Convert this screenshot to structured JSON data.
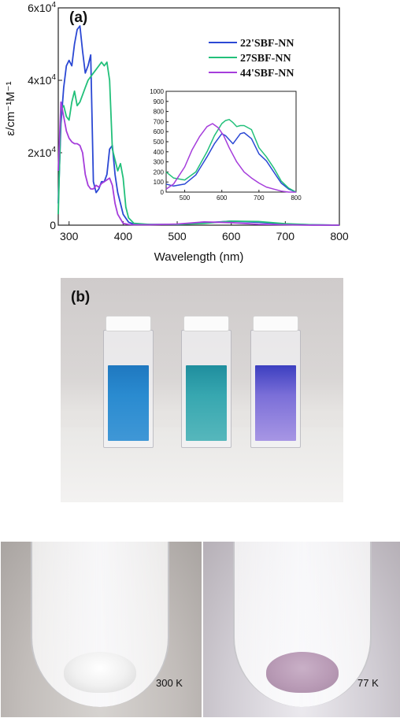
{
  "panel_a_label": "(a)",
  "panel_b_label": "(b)",
  "chart_data": [
    {
      "type": "line",
      "xlabel": "Wavelength (nm)",
      "ylabel": "ε/cm⁻¹M⁻¹",
      "xlim": [
        280,
        800
      ],
      "ylim": [
        0,
        60000
      ],
      "xticks": [
        300,
        400,
        500,
        600,
        700,
        800
      ],
      "yticks": [
        {
          "value": 0,
          "mantissa": "0",
          "exp": ""
        },
        {
          "value": 20000,
          "mantissa": "2x10",
          "exp": "4"
        },
        {
          "value": 40000,
          "mantissa": "4x10",
          "exp": "4"
        },
        {
          "value": 60000,
          "mantissa": "6x10",
          "exp": "4"
        }
      ],
      "legend_position": "top-right",
      "series": [
        {
          "name": "22'SBF-NN",
          "color": "#2b48d4",
          "x": [
            280,
            285,
            290,
            295,
            300,
            305,
            310,
            315,
            320,
            325,
            330,
            335,
            340,
            345,
            350,
            355,
            360,
            365,
            370,
            375,
            380,
            385,
            390,
            395,
            400,
            410,
            420,
            450,
            500,
            550,
            600,
            650,
            700,
            750,
            800
          ],
          "y": [
            6000,
            28000,
            38000,
            44000,
            45500,
            44000,
            50000,
            54000,
            55000,
            48000,
            42000,
            44000,
            47000,
            12000,
            9000,
            10000,
            12000,
            12000,
            14000,
            21000,
            22000,
            14000,
            9000,
            6000,
            3000,
            800,
            300,
            200,
            200,
            600,
            1100,
            800,
            300,
            100,
            0
          ]
        },
        {
          "name": "27SBF-NN",
          "color": "#22c07a",
          "x": [
            280,
            285,
            290,
            295,
            300,
            305,
            310,
            315,
            320,
            325,
            330,
            335,
            340,
            345,
            350,
            355,
            360,
            365,
            370,
            375,
            380,
            385,
            390,
            395,
            400,
            405,
            410,
            420,
            450,
            500,
            550,
            600,
            650,
            700,
            750,
            800
          ],
          "y": [
            3000,
            32000,
            33000,
            30000,
            29000,
            34000,
            37000,
            33000,
            34000,
            36000,
            38000,
            40000,
            41000,
            42000,
            43000,
            44000,
            45000,
            44000,
            45000,
            40000,
            21000,
            18000,
            15000,
            17000,
            13000,
            5000,
            2000,
            500,
            200,
            200,
            500,
            1100,
            1000,
            400,
            100,
            0
          ]
        },
        {
          "name": "44'SBF-NN",
          "color": "#a53ddb",
          "x": [
            280,
            285,
            290,
            295,
            300,
            305,
            310,
            315,
            320,
            325,
            330,
            335,
            340,
            345,
            350,
            355,
            360,
            365,
            370,
            375,
            380,
            385,
            390,
            400,
            410,
            420,
            450,
            500,
            550,
            600,
            650,
            700,
            750,
            800
          ],
          "y": [
            15000,
            34000,
            30000,
            26000,
            24000,
            23000,
            22500,
            22500,
            22000,
            20000,
            14000,
            11000,
            10000,
            10000,
            11000,
            10500,
            11500,
            12000,
            12500,
            13000,
            11000,
            6000,
            3000,
            500,
            200,
            100,
            100,
            300,
            900,
            700,
            250,
            100,
            0,
            0
          ]
        }
      ]
    },
    {
      "type": "line",
      "title": "",
      "xlim": [
        450,
        800
      ],
      "ylim": [
        0,
        1000
      ],
      "xticks": [
        500,
        600,
        700,
        800
      ],
      "yticks": [
        0,
        100,
        200,
        300,
        400,
        500,
        600,
        700,
        800,
        900,
        1000
      ],
      "series": [
        {
          "color": "#2b48d4",
          "x": [
            450,
            470,
            500,
            530,
            560,
            580,
            600,
            610,
            620,
            630,
            640,
            650,
            660,
            680,
            700,
            720,
            740,
            760,
            780,
            800
          ],
          "y": [
            80,
            60,
            80,
            170,
            350,
            480,
            580,
            560,
            520,
            480,
            530,
            580,
            590,
            530,
            380,
            310,
            200,
            90,
            30,
            0
          ]
        },
        {
          "color": "#22c07a",
          "x": [
            450,
            470,
            500,
            530,
            560,
            580,
            600,
            610,
            620,
            630,
            640,
            650,
            660,
            680,
            700,
            720,
            740,
            760,
            780,
            800
          ],
          "y": [
            200,
            140,
            120,
            200,
            400,
            560,
            680,
            710,
            720,
            690,
            650,
            660,
            660,
            620,
            440,
            350,
            240,
            110,
            40,
            0
          ]
        },
        {
          "color": "#a53ddb",
          "x": [
            450,
            470,
            500,
            520,
            540,
            560,
            575,
            590,
            605,
            620,
            640,
            660,
            680,
            700,
            720,
            740,
            760,
            780,
            800
          ],
          "y": [
            30,
            80,
            250,
            420,
            550,
            650,
            680,
            640,
            560,
            440,
            300,
            200,
            140,
            90,
            50,
            30,
            10,
            0,
            0
          ]
        }
      ]
    }
  ],
  "photo_c": {
    "left_label": "300 K",
    "right_label": "77 K"
  }
}
